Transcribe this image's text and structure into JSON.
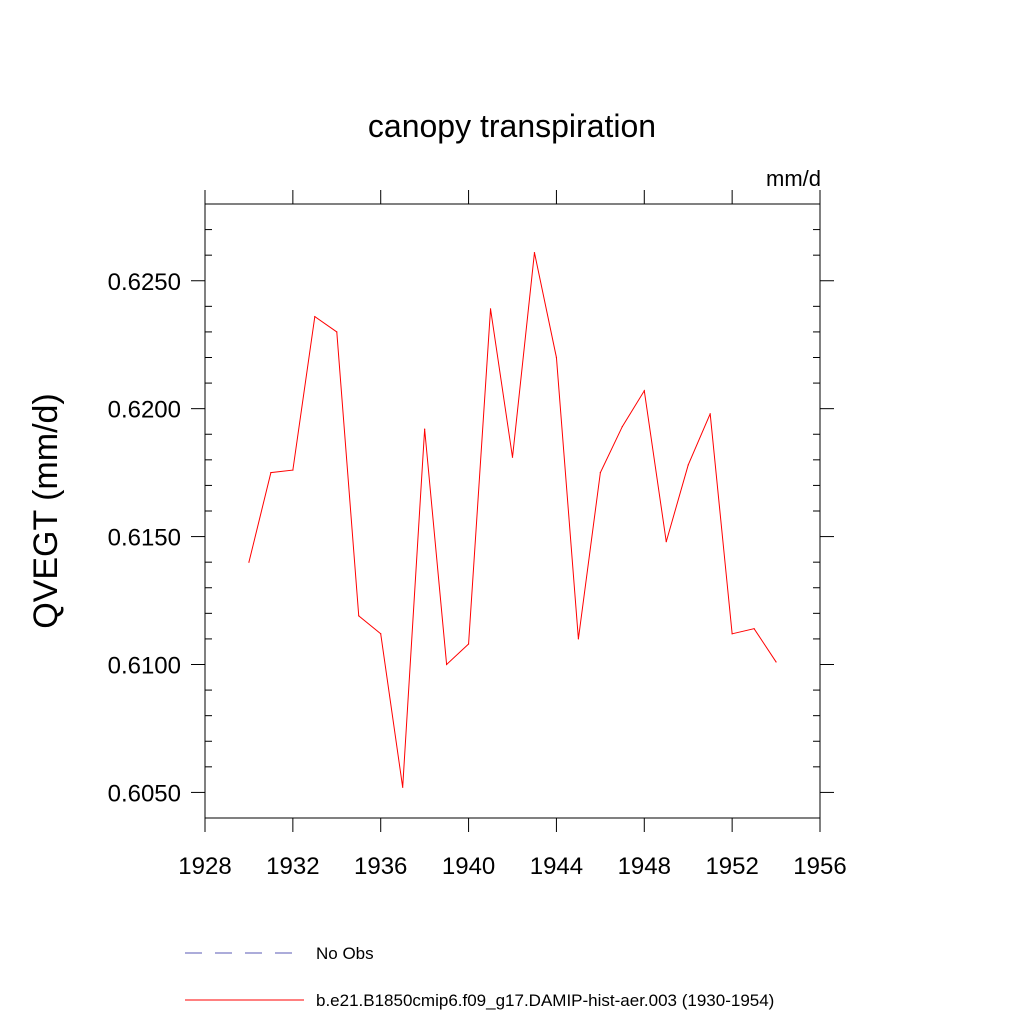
{
  "chart_data": {
    "type": "line",
    "title": "canopy transpiration",
    "units_label": "mm/d",
    "ylabel": "QVEGT  (mm/d)",
    "xlabel": "",
    "xlim": [
      1928,
      1956
    ],
    "ylim": [
      0.604,
      0.628
    ],
    "x_ticks": [
      1928,
      1932,
      1936,
      1940,
      1944,
      1948,
      1952,
      1956
    ],
    "y_ticks": [
      0.605,
      0.61,
      0.615,
      0.62,
      0.625
    ],
    "y_tick_labels": [
      "0.6050",
      "0.6100",
      "0.6150",
      "0.6200",
      "0.6250"
    ],
    "series": [
      {
        "name": "b.e21.B1850cmip6.f09_g17.DAMIP-hist-aer.003 (1930-1954)",
        "color": "#ff0000",
        "x": [
          1930,
          1931,
          1932,
          1933,
          1934,
          1935,
          1936,
          1937,
          1938,
          1939,
          1940,
          1941,
          1942,
          1943,
          1944,
          1945,
          1946,
          1947,
          1948,
          1949,
          1950,
          1951,
          1952,
          1953,
          1954
        ],
        "y": [
          0.614,
          0.6175,
          0.6176,
          0.6236,
          0.623,
          0.6119,
          0.6112,
          0.6052,
          0.6192,
          0.61,
          0.6108,
          0.6239,
          0.6181,
          0.6261,
          0.622,
          0.611,
          0.6175,
          0.6193,
          0.6207,
          0.6148,
          0.6178,
          0.6198,
          0.6112,
          0.6114,
          0.6101
        ]
      }
    ],
    "legend": [
      {
        "label": "No Obs",
        "color": "#5a5ab4",
        "style": "dashed"
      },
      {
        "label": "b.e21.B1850cmip6.f09_g17.DAMIP-hist-aer.003 (1930-1954)",
        "color": "#ff0000",
        "style": "solid"
      }
    ],
    "legend_position": "bottom",
    "grid": false
  }
}
